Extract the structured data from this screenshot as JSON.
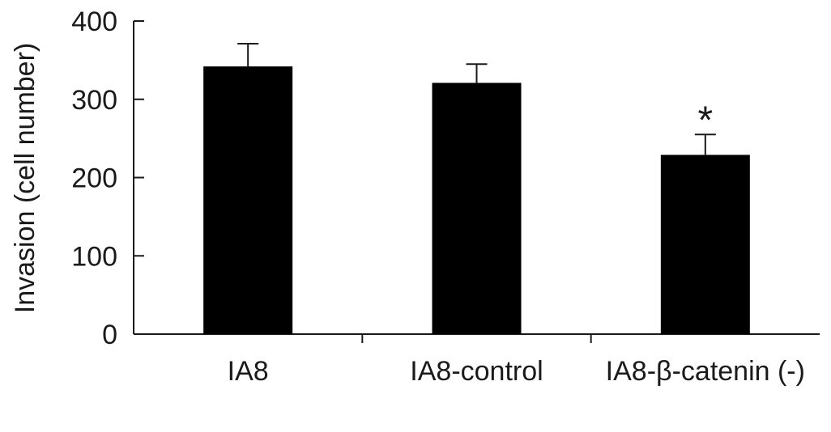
{
  "chart_data": {
    "type": "bar",
    "title": "",
    "xlabel": "",
    "ylabel": "Invasion (cell number)",
    "categories": [
      "IA8",
      "IA8-control",
      "IA8-β-catenin (-)"
    ],
    "values": [
      342,
      321,
      229
    ],
    "error": [
      29,
      24,
      26
    ],
    "annotations": [
      "",
      "",
      "*"
    ],
    "ylim": [
      0,
      400
    ],
    "yticks": [
      "0",
      "100",
      "200",
      "300",
      "400"
    ],
    "grid": false,
    "legend": "none",
    "bar_color": "#000000"
  }
}
